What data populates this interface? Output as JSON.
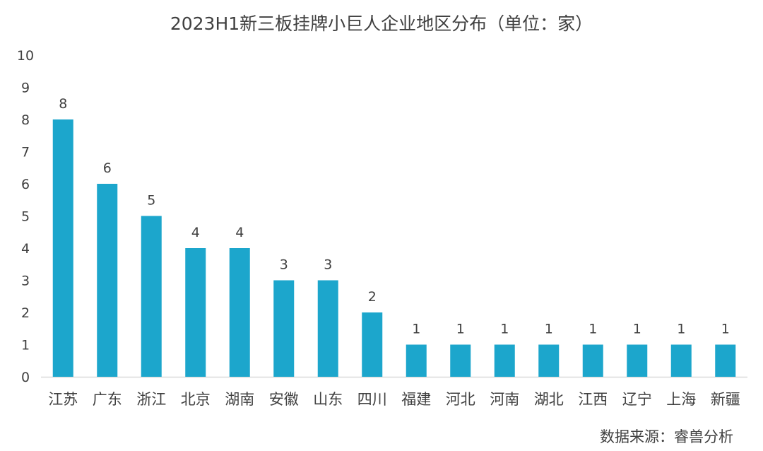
{
  "title": "2023H1新三板挂牌小巨人企业地区分布（单位：家）",
  "source": "数据来源：睿兽分析",
  "colors": {
    "bar": "#1CA6CC",
    "axis": "#D9D9D9",
    "text": "#404040"
  },
  "chart_data": {
    "type": "bar",
    "title": "2023H1新三板挂牌小巨人企业地区分布（单位：家）",
    "categories": [
      "江苏",
      "广东",
      "浙江",
      "北京",
      "湖南",
      "安徽",
      "山东",
      "四川",
      "福建",
      "河北",
      "河南",
      "湖北",
      "江西",
      "辽宁",
      "上海",
      "新疆"
    ],
    "values": [
      8,
      6,
      5,
      4,
      4,
      3,
      3,
      2,
      1,
      1,
      1,
      1,
      1,
      1,
      1,
      1
    ],
    "ylim": [
      0,
      10
    ],
    "yticks": [
      0,
      1,
      2,
      3,
      4,
      5,
      6,
      7,
      8,
      9,
      10
    ],
    "grid": false,
    "legend": "none",
    "data_labels": true
  }
}
